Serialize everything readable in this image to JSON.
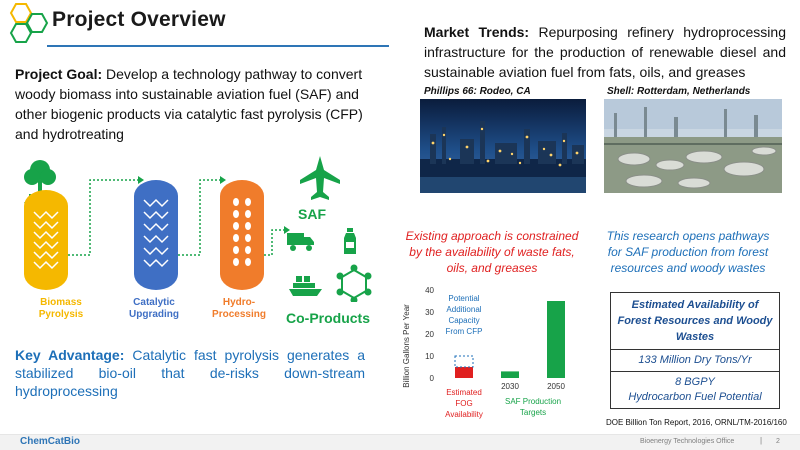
{
  "header": {
    "title": "Project Overview"
  },
  "goal": {
    "label": "Project Goal:",
    "text": " Develop a technology pathway to convert woody biomass into sustainable aviation fuel (SAF) and other biogenic products via catalytic fast pyrolysis (CFP) and hydrotreating"
  },
  "market": {
    "label": "Market Trends:",
    "text": " Repurposing refinery hydroprocessing infrastructure for the production of renewable diesel and sustainable aviation fuel from fats, oils, and greases",
    "photos": [
      {
        "caption": "Phillips 66: Rodeo, CA"
      },
      {
        "caption": "Shell: Rotterdam, Netherlands"
      }
    ]
  },
  "process": {
    "stages": [
      {
        "label": "Biomass\nPyrolysis",
        "color": "#f5b800"
      },
      {
        "label": "Catalytic\nUpgrading",
        "color": "#3f6fc4"
      },
      {
        "label": "Hydro-\nProcessing",
        "color": "#f07c2b"
      }
    ],
    "saf_label": "SAF",
    "coproducts_label": "Co-Products",
    "accent_green": "#17a349",
    "icons": [
      "tree-icon",
      "airplane-icon",
      "truck-icon",
      "bottle-icon",
      "ship-icon",
      "molecule-icon"
    ]
  },
  "advantage": {
    "label": "Key Advantage:",
    "text": " Catalytic fast pyrolysis generates a stabilized bio-oil that de-risks down-stream hydroprocessing"
  },
  "notes": {
    "red": "Existing approach is constrained by the availability of waste fats, oils, and greases",
    "blue": "This research opens pathways for SAF production from forest resources and woody wastes"
  },
  "chart_data": {
    "type": "bar",
    "ylabel": "Billion Gallons Per Year",
    "ylim": [
      0,
      40
    ],
    "yticks": [
      0,
      10,
      20,
      30,
      40
    ],
    "categories": [
      "Estimated FOG Availability",
      "2030",
      "2050"
    ],
    "bars": [
      {
        "category": "Estimated FOG Availability",
        "value": 5,
        "color": "#e02020",
        "potential_additional": 5
      },
      {
        "category": "2030",
        "value": 3,
        "color": "#17a349"
      },
      {
        "category": "2050",
        "value": 35,
        "color": "#17a349"
      }
    ],
    "annotations": {
      "potential": "Potential Additional Capacity From CFP",
      "fog_label": "Estimated FOG Availability",
      "saf_targets": "SAF Production Targets"
    }
  },
  "availability_table": {
    "header": "Estimated Availability of Forest Resources and Woody Wastes",
    "row1": "133 Million Dry Tons/Yr",
    "row2a": "8 BGPY",
    "row2b": "Hydrocarbon Fuel Potential"
  },
  "source_note": "DOE Billion Ton Report, 2016, ORNL/TM-2016/160",
  "footer": {
    "logo": "ChemCatBio",
    "office": "Bioenergy Technologies Office",
    "separator": "|",
    "page": "2"
  }
}
